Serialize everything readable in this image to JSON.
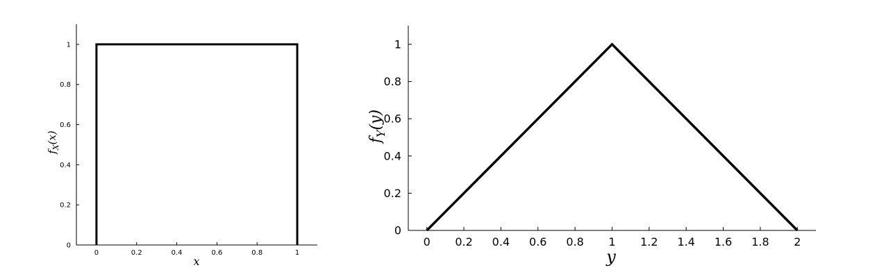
{
  "chart_data": [
    {
      "type": "line",
      "title": "",
      "xlabel": "x",
      "ylabel": "f_X(x)",
      "ylabel_parts": {
        "f": "f",
        "sub": "X",
        "arg": "(x)"
      },
      "xlim": [
        -0.1,
        1.1
      ],
      "ylim": [
        0,
        1.1
      ],
      "xticks": [
        0,
        0.2,
        0.4,
        0.6,
        0.8,
        1
      ],
      "yticks": [
        0,
        0.2,
        0.4,
        0.6,
        0.8,
        1
      ],
      "xtick_labels": [
        "0",
        "0.2",
        "0.4",
        "0.6",
        "0.8",
        "1"
      ],
      "ytick_labels": [
        "0",
        "0.2",
        "0.4",
        "0.6",
        "0.8",
        "1"
      ],
      "grid": false,
      "series": [
        {
          "name": "f_X(x)",
          "x": [
            0,
            0,
            1,
            1
          ],
          "y": [
            0,
            1,
            1,
            0
          ],
          "color": "#000000"
        }
      ]
    },
    {
      "type": "line",
      "title": "",
      "xlabel": "y",
      "ylabel": "f_Y(y)",
      "ylabel_parts": {
        "f": "f",
        "sub": "Y",
        "arg": "(y)"
      },
      "xlim": [
        -0.1,
        2.1
      ],
      "ylim": [
        0,
        1.1
      ],
      "xticks": [
        0,
        0.2,
        0.4,
        0.6,
        0.8,
        1,
        1.2,
        1.4,
        1.6,
        1.8,
        2
      ],
      "yticks": [
        0,
        0.2,
        0.4,
        0.6,
        0.8,
        1
      ],
      "xtick_labels": [
        "0",
        "0.2",
        "0.4",
        "0.6",
        "0.8",
        "1",
        "1.2",
        "1.4",
        "1.6",
        "1.8",
        "2"
      ],
      "ytick_labels": [
        "0",
        "0.2",
        "0.4",
        "0.6",
        "0.8",
        "1"
      ],
      "grid": false,
      "series": [
        {
          "name": "f_Y(y)",
          "x": [
            0,
            1,
            2
          ],
          "y": [
            0,
            1,
            0
          ],
          "color": "#000000"
        }
      ]
    }
  ]
}
